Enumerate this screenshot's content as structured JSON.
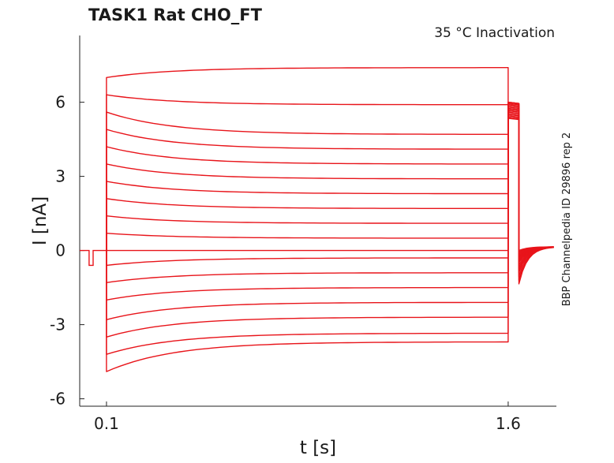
{
  "chart_data": {
    "type": "line",
    "title": "TASK1  Rat  CHO_FT",
    "subtitle": "35 °C  Inactivation",
    "side_label": "BBP Channelpedia ID 29896 rep 2",
    "xlabel": "t [s]",
    "ylabel": "I [nA]",
    "xlim": [
      0.0,
      1.78
    ],
    "ylim": [
      -6.3,
      8.7
    ],
    "x_ticks": [
      "0.1",
      "1.6"
    ],
    "y_ticks": [
      "-6",
      "-3",
      "0",
      "3",
      "6"
    ],
    "grid": false,
    "color": "#e8141a",
    "protocol": {
      "baseline_current": 0.0,
      "prepulse": {
        "start": 0.035,
        "end": 0.05,
        "current": -0.6
      },
      "step_start": 0.1,
      "step_end": 1.6,
      "tail_end": 1.64
    },
    "series": [
      {
        "values_start_end": [
          -4.9,
          -3.7
        ],
        "tail": [
          5.35,
          -1.35
        ]
      },
      {
        "values_start_end": [
          -4.2,
          -3.35
        ],
        "tail": [
          5.4,
          -1.2
        ]
      },
      {
        "values_start_end": [
          -3.5,
          -2.7
        ],
        "tail": [
          5.45,
          -1.05
        ]
      },
      {
        "values_start_end": [
          -2.8,
          -2.1
        ],
        "tail": [
          5.5,
          -0.9
        ]
      },
      {
        "values_start_end": [
          -2.0,
          -1.5
        ],
        "tail": [
          5.55,
          -0.8
        ]
      },
      {
        "values_start_end": [
          -1.3,
          -0.9
        ],
        "tail": [
          5.6,
          -0.7
        ]
      },
      {
        "values_start_end": [
          -0.6,
          -0.3
        ],
        "tail": [
          5.65,
          -0.6
        ]
      },
      {
        "values_start_end": [
          0.0,
          0.0
        ],
        "tail": [
          5.7,
          -0.5
        ]
      },
      {
        "values_start_end": [
          0.7,
          0.5
        ],
        "tail": [
          5.75,
          -0.45
        ]
      },
      {
        "values_start_end": [
          1.4,
          1.1
        ],
        "tail": [
          5.8,
          -0.4
        ]
      },
      {
        "values_start_end": [
          2.1,
          1.7
        ],
        "tail": [
          5.85,
          -0.35
        ]
      },
      {
        "values_start_end": [
          2.8,
          2.3
        ],
        "tail": [
          5.9,
          -0.3
        ]
      },
      {
        "values_start_end": [
          3.5,
          2.9
        ],
        "tail": [
          5.9,
          -0.25
        ]
      },
      {
        "values_start_end": [
          4.2,
          3.5
        ],
        "tail": [
          5.95,
          -0.2
        ]
      },
      {
        "values_start_end": [
          4.9,
          4.1
        ],
        "tail": [
          5.95,
          -0.15
        ]
      },
      {
        "values_start_end": [
          5.6,
          4.7
        ],
        "tail": [
          6.0,
          -0.1
        ]
      },
      {
        "values_start_end": [
          6.3,
          5.9
        ],
        "tail": [
          6.0,
          -0.05
        ]
      },
      {
        "values_start_end": [
          7.0,
          7.4
        ],
        "tail": [
          6.0,
          0.0
        ]
      }
    ]
  }
}
